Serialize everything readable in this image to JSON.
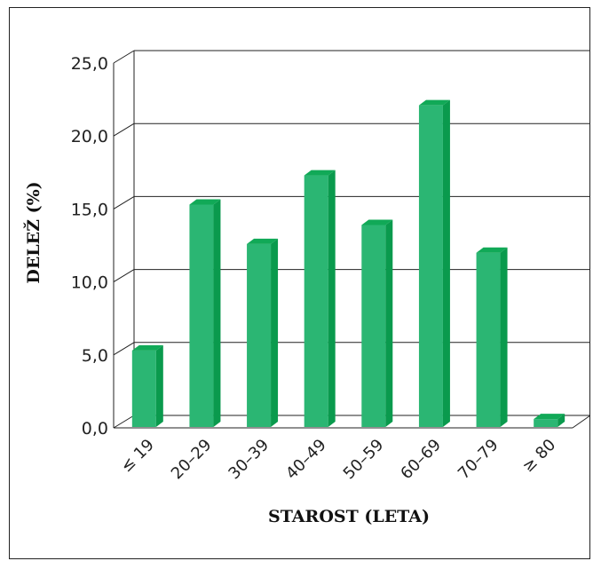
{
  "chart_data": {
    "type": "bar",
    "title": "",
    "xlabel": "STAROST (LETA)",
    "ylabel": "DELEŽ (%)",
    "categories": [
      "≤ 19",
      "20–29",
      "30–39",
      "40–49",
      "50–59",
      "60–69",
      "70–79",
      "≥ 80"
    ],
    "values": [
      5.3,
      15.3,
      12.6,
      17.3,
      13.9,
      22.1,
      12.0,
      0.6
    ],
    "ylim": [
      0,
      25
    ],
    "yticks": [
      "0,0",
      "5,0",
      "10,0",
      "15,0",
      "20,0",
      "25,0"
    ],
    "grid": true,
    "bar_color": "#2bb673",
    "bar_side_color": "#0a9a4d",
    "bar_top_color": "#11a957"
  }
}
